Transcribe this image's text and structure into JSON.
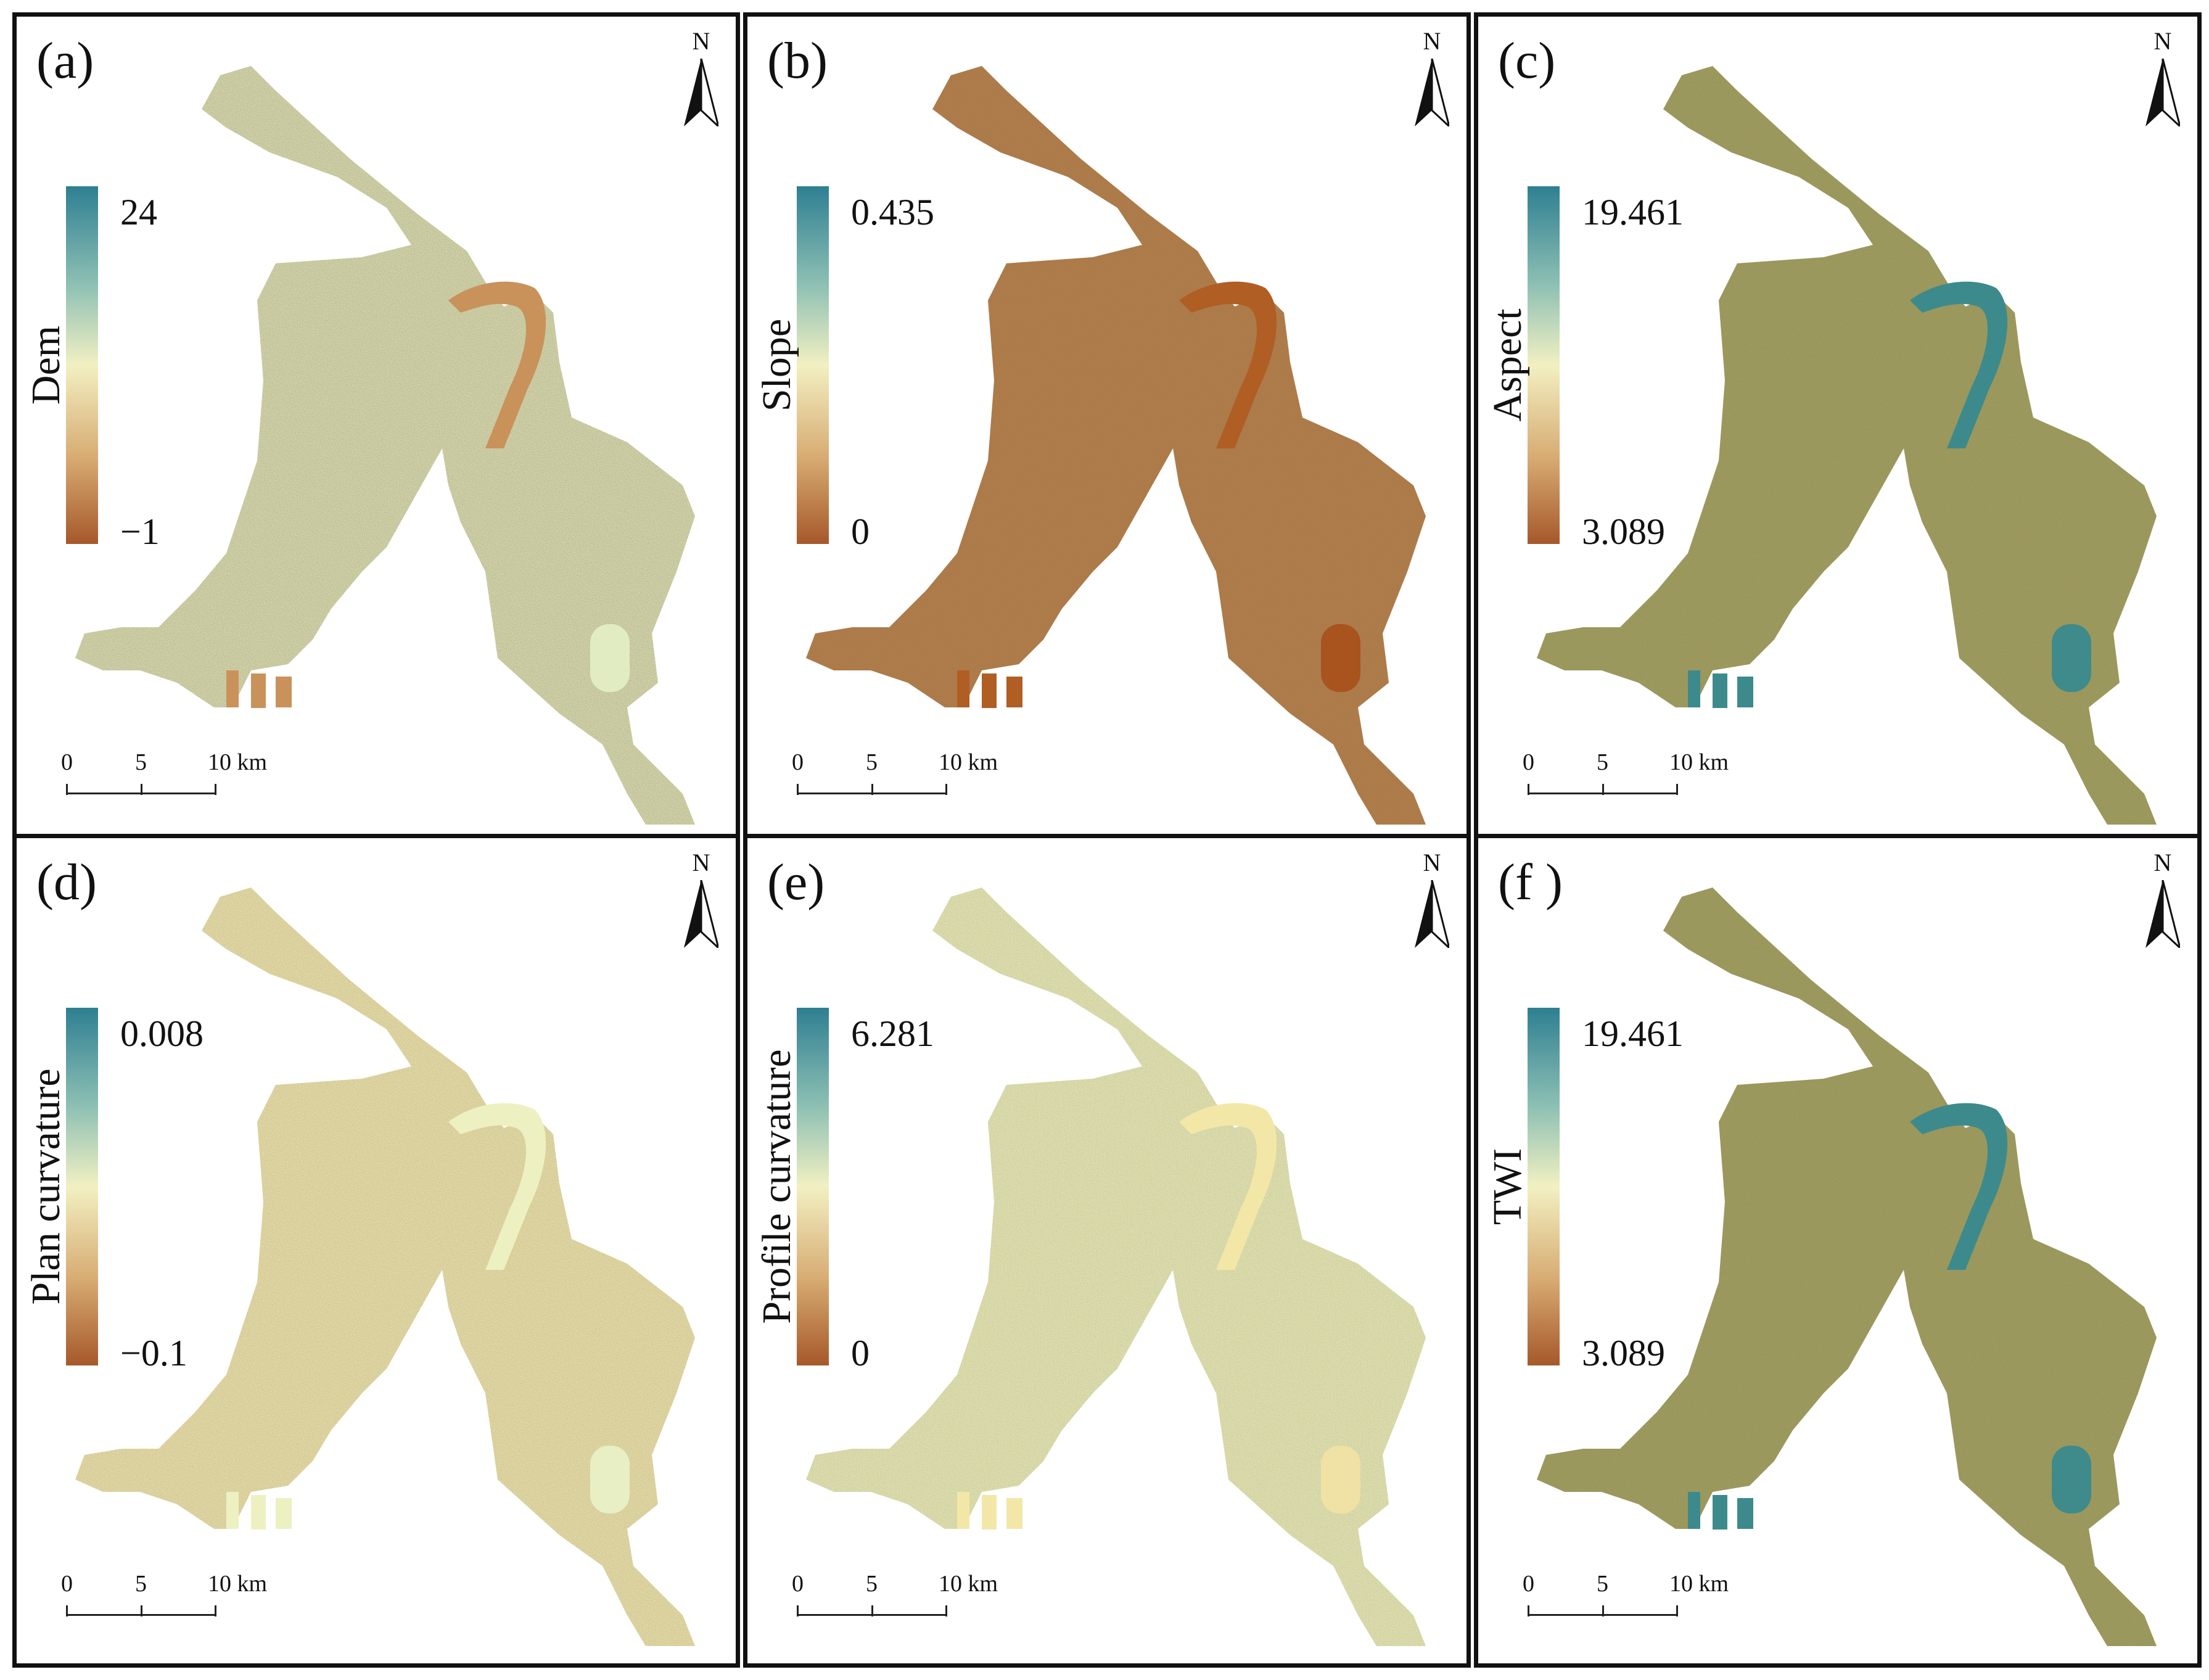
{
  "colors": {
    "ramp_high": "#2e7f92",
    "ramp_mid": "#f2f0c2",
    "ramp_low": "#a6582a",
    "frame": "#111111"
  },
  "north_arrow": {
    "label": "N"
  },
  "scale_bar": {
    "ticks": [
      "0",
      "5",
      "10 km"
    ]
  },
  "panels": [
    {
      "label": "(a)",
      "title": "Dem",
      "max": "24",
      "min": "−1",
      "map_fill": "#dfd3a0",
      "map_tint": "#5a9aa6",
      "river_fill": "#c9925a",
      "lake_fill": "#e2ecc2"
    },
    {
      "label": "(b)",
      "title": "Slope",
      "max": "0.435",
      "min": "0",
      "map_fill": "#b9773f",
      "map_tint": "#6f8f7f",
      "river_fill": "#b05e24",
      "lake_fill": "#a9531f"
    },
    {
      "label": "(c)",
      "title": "Aspect",
      "max": "19.461",
      "min": "3.089",
      "map_fill": "#a49a5a",
      "map_tint": "#6d8d6c",
      "river_fill": "#3d8a8c",
      "lake_fill": "#3f8a8a"
    },
    {
      "label": "(d)",
      "title": "Plan curvature",
      "max": "0.008",
      "min": "−0.1",
      "map_fill": "#e2dca6",
      "map_tint": "#b49a78",
      "river_fill": "#edf1c2",
      "lake_fill": "#e8efc4"
    },
    {
      "label": "(e)",
      "title": "Profile curvature",
      "max": "6.281",
      "min": "0",
      "map_fill": "#e6e0ac",
      "map_tint": "#8faf98",
      "river_fill": "#f3e7a8",
      "lake_fill": "#f0e2a4"
    },
    {
      "label": "(f )",
      "title": "TWI",
      "max": "19.461",
      "min": "3.089",
      "map_fill": "#a49a5a",
      "map_tint": "#6d8d6c",
      "river_fill": "#3d8a8c",
      "lake_fill": "#3f8a8a"
    }
  ]
}
